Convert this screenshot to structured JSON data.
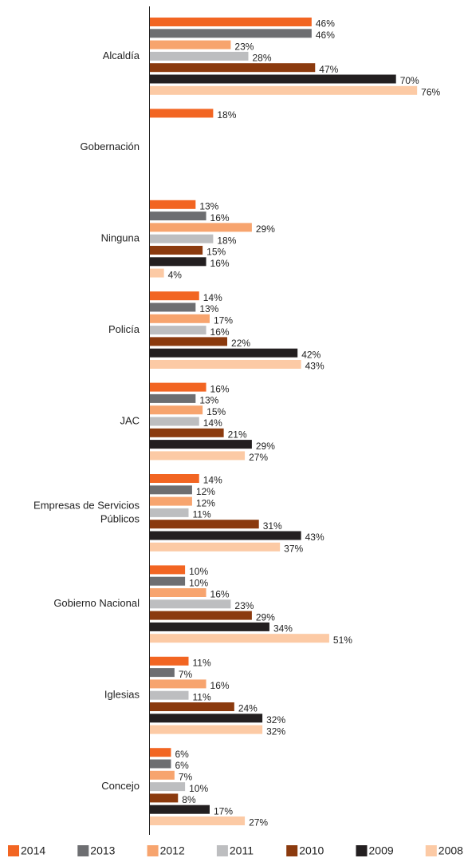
{
  "chart_data": {
    "type": "bar",
    "orientation": "horizontal",
    "categories": [
      "Alcaldía",
      "Gobernación",
      "Ninguna",
      "Policía",
      "JAC",
      "Empresas de Servicios Públicos",
      "Gobierno Nacional",
      "Iglesias",
      "Concejo"
    ],
    "series": [
      {
        "name": "2014",
        "color": "#f26522",
        "values": [
          46,
          18,
          13,
          14,
          16,
          14,
          10,
          11,
          6
        ],
        "value_labels": [
          "46%",
          "18%",
          "13%",
          "14%",
          "16%",
          "14%",
          "10%",
          "11%",
          "6%"
        ]
      },
      {
        "name": "2013",
        "color": "#6d6e71",
        "values": [
          46,
          null,
          16,
          13,
          13,
          12,
          10,
          7,
          6
        ],
        "value_labels": [
          "46%",
          null,
          "16%",
          "13%",
          "13%",
          "12%",
          "10%",
          "7%",
          "6%"
        ]
      },
      {
        "name": "2012",
        "color": "#f7a46e",
        "values": [
          23,
          null,
          29,
          17,
          15,
          12,
          16,
          16,
          7
        ],
        "value_labels": [
          "23%",
          null,
          "29%",
          "17%",
          "15%",
          "12%",
          "16%",
          "16%",
          "7%"
        ]
      },
      {
        "name": "2011",
        "color": "#bdbec0",
        "values": [
          28,
          null,
          18,
          16,
          14,
          11,
          23,
          11,
          10
        ],
        "value_labels": [
          "28%",
          null,
          "18%",
          "16%",
          "14%",
          "11%",
          "23%",
          "11%",
          "10%"
        ]
      },
      {
        "name": "2010",
        "color": "#8b3a0e",
        "values": [
          47,
          null,
          15,
          22,
          21,
          31,
          29,
          24,
          8
        ],
        "value_labels": [
          "47%",
          null,
          "15%",
          "22%",
          "21%",
          "31%",
          "29%",
          "24%",
          "8%"
        ]
      },
      {
        "name": "2009",
        "color": "#231f20",
        "values": [
          70,
          null,
          16,
          42,
          29,
          43,
          34,
          32,
          17
        ],
        "value_labels": [
          "70%",
          null,
          "16%",
          "42%",
          "29%",
          "43%",
          "34%",
          "32%",
          "17%"
        ]
      },
      {
        "name": "2008",
        "color": "#fccaa5",
        "values": [
          76,
          null,
          4,
          43,
          27,
          37,
          51,
          32,
          27
        ],
        "value_labels": [
          "76%",
          null,
          "4%",
          "43%",
          "27%",
          "37%",
          "51%",
          "32%",
          "27%"
        ]
      }
    ]
  }
}
